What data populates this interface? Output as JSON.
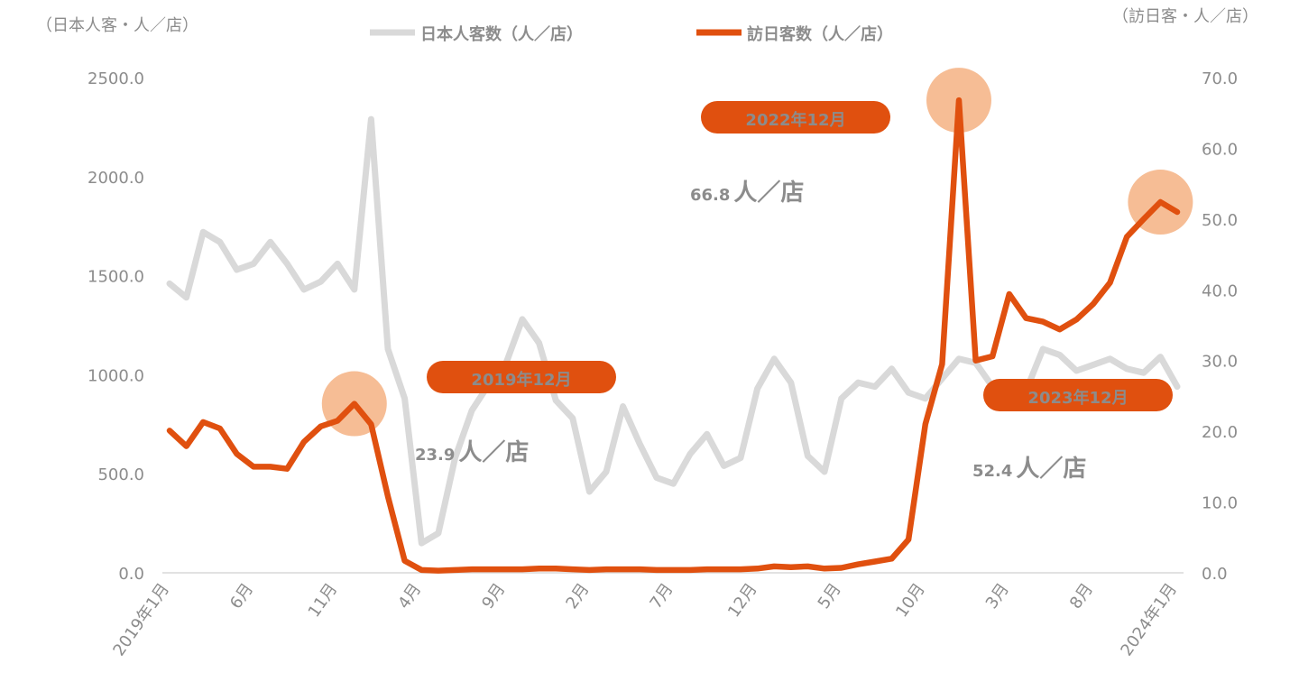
{
  "chart_data": {
    "type": "line",
    "y_axis_label": "（日本人客・人／店）",
    "y2_axis_label": "（訪日客・人／店）",
    "categories": [
      "2019年1月",
      null,
      null,
      null,
      null,
      "6月",
      null,
      null,
      null,
      null,
      "11月",
      null,
      null,
      null,
      null,
      "4月",
      null,
      null,
      null,
      null,
      "9月",
      null,
      null,
      null,
      null,
      "2月",
      null,
      null,
      null,
      null,
      "7月",
      null,
      null,
      null,
      null,
      "12月",
      null,
      null,
      null,
      null,
      "5月",
      null,
      null,
      null,
      null,
      "10月",
      null,
      null,
      null,
      null,
      "3月",
      null,
      null,
      null,
      null,
      "8月",
      null,
      null,
      null,
      null,
      "2024年1月"
    ],
    "series": [
      {
        "name": "日本人客数（人／店）",
        "color": "#d9d9d9",
        "axis": "y",
        "values": [
          1460,
          1390,
          1720,
          1670,
          1530,
          1560,
          1670,
          1560,
          1430,
          1470,
          1560,
          1430,
          2290,
          1130,
          880,
          150,
          200,
          580,
          820,
          950,
          1050,
          1280,
          1160,
          870,
          780,
          410,
          510,
          840,
          650,
          480,
          450,
          600,
          700,
          540,
          580,
          930,
          1080,
          960,
          590,
          510,
          880,
          960,
          940,
          1030,
          910,
          880,
          980,
          1080,
          1060,
          940,
          920,
          920,
          1130,
          1100,
          1020,
          1050,
          1080,
          1030,
          1010,
          1090,
          940
        ]
      },
      {
        "name": "訪日客数（人／店）",
        "color": "#e0500f",
        "axis": "y2",
        "values": [
          20.1,
          17.9,
          21.3,
          20.4,
          16.8,
          15.0,
          15.0,
          14.7,
          18.5,
          20.7,
          21.5,
          23.9,
          21.0,
          10.8,
          1.7,
          0.4,
          0.3,
          0.4,
          0.5,
          0.5,
          0.5,
          0.5,
          0.6,
          0.6,
          0.5,
          0.4,
          0.5,
          0.5,
          0.5,
          0.4,
          0.4,
          0.4,
          0.5,
          0.5,
          0.5,
          0.6,
          0.9,
          0.8,
          0.9,
          0.6,
          0.7,
          1.2,
          1.6,
          2.0,
          4.7,
          21.0,
          29.5,
          66.8,
          30.0,
          30.6,
          39.4,
          36.0,
          35.5,
          34.4,
          35.8,
          38.0,
          41.0,
          47.5,
          50.0,
          52.4,
          51.0
        ]
      }
    ],
    "ylim": [
      0,
      2500
    ],
    "yticks": [
      {
        "value": 0,
        "label": "0.0"
      },
      {
        "value": 500,
        "label": "500.0"
      },
      {
        "value": 1000,
        "label": "1000.0"
      },
      {
        "value": 1500,
        "label": "1500.0"
      },
      {
        "value": 2000,
        "label": "2000.0"
      },
      {
        "value": 2500,
        "label": "2500.0"
      }
    ],
    "y2lim": [
      0,
      70
    ],
    "y2ticks": [
      {
        "value": 0,
        "label": "0.0"
      },
      {
        "value": 10,
        "label": "10.0"
      },
      {
        "value": 20,
        "label": "20.0"
      },
      {
        "value": 30,
        "label": "30.0"
      },
      {
        "value": 40,
        "label": "40.0"
      },
      {
        "value": 50,
        "label": "50.0"
      },
      {
        "value": 60,
        "label": "60.0"
      },
      {
        "value": 70,
        "label": "70.0"
      }
    ],
    "legend_position": "top",
    "annotations": [
      {
        "label": "2019年12月",
        "value": 23.9,
        "unit": "人／店"
      },
      {
        "label": "2022年12月",
        "value": 66.8,
        "unit": "人／店"
      },
      {
        "label": "2023年12月",
        "value": 52.4,
        "unit": "人／店"
      }
    ]
  }
}
